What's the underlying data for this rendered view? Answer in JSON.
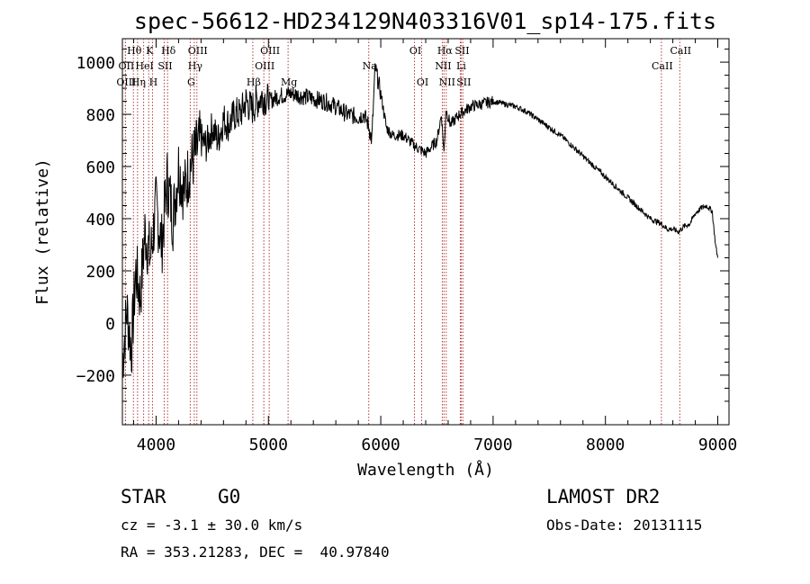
{
  "chart_data": {
    "type": "line",
    "title": "spec-56612-HD234129N403316V01_sp14-175.fits",
    "xlabel": "Wavelength (Å)",
    "ylabel": "Flux (relative)",
    "xlim": [
      3700,
      9100
    ],
    "ylim": [
      -390,
      1090
    ],
    "xticks": [
      4000,
      5000,
      6000,
      7000,
      8000,
      9000
    ],
    "yticks": [
      -200,
      0,
      200,
      400,
      600,
      800,
      1000
    ],
    "series": [
      {
        "name": "flux",
        "x": [
          3700,
          3740,
          3780,
          3820,
          3860,
          3900,
          3950,
          4000,
          4050,
          4100,
          4150,
          4200,
          4250,
          4300,
          4350,
          4400,
          4450,
          4500,
          4550,
          4600,
          4650,
          4700,
          4750,
          4800,
          4850,
          4900,
          4950,
          5000,
          5100,
          5200,
          5300,
          5400,
          5500,
          5600,
          5700,
          5800,
          5850,
          5890,
          5920,
          5950,
          6000,
          6050,
          6100,
          6200,
          6300,
          6400,
          6500,
          6540,
          6563,
          6580,
          6620,
          6700,
          6800,
          6900,
          7000,
          7100,
          7200,
          7300,
          7400,
          7500,
          7600,
          7700,
          7800,
          7900,
          8000,
          8100,
          8200,
          8300,
          8400,
          8500,
          8550,
          8600,
          8650,
          8700,
          8750,
          8800,
          8850,
          8900,
          8950,
          8980,
          9000
        ],
        "y": [
          -150,
          50,
          -100,
          200,
          100,
          350,
          250,
          450,
          300,
          550,
          400,
          600,
          500,
          600,
          650,
          700,
          680,
          750,
          700,
          780,
          760,
          800,
          800,
          850,
          820,
          850,
          870,
          850,
          870,
          880,
          870,
          860,
          850,
          830,
          800,
          790,
          800,
          760,
          700,
          980,
          880,
          750,
          720,
          720,
          680,
          650,
          700,
          800,
          650,
          820,
          760,
          800,
          830,
          840,
          850,
          840,
          830,
          810,
          780,
          750,
          720,
          680,
          640,
          600,
          560,
          520,
          480,
          440,
          400,
          380,
          360,
          360,
          350,
          370,
          380,
          420,
          440,
          450,
          430,
          300,
          250
        ]
      }
    ],
    "spectral_lines": [
      {
        "label": "Hθ",
        "x": 3798,
        "row": 1
      },
      {
        "label": "K",
        "x": 3934,
        "row": 1
      },
      {
        "label": "Hδ",
        "x": 4102,
        "row": 1
      },
      {
        "label": "OIII",
        "x": 4363,
        "row": 1
      },
      {
        "label": "OIII",
        "x": 5007,
        "row": 1
      },
      {
        "label": "OI",
        "x": 6300,
        "row": 1
      },
      {
        "label": "Hα",
        "x": 6563,
        "row": 1
      },
      {
        "label": "SII",
        "x": 6716,
        "row": 1
      },
      {
        "label": "CaII",
        "x": 8662,
        "row": 1
      },
      {
        "label": "OII",
        "x": 3727,
        "row": 2
      },
      {
        "label": "HeI",
        "x": 3889,
        "row": 2
      },
      {
        "label": "SII",
        "x": 4072,
        "row": 2
      },
      {
        "label": "Hγ",
        "x": 4340,
        "row": 2
      },
      {
        "label": "OIII",
        "x": 4959,
        "row": 2
      },
      {
        "label": "Na",
        "x": 5893,
        "row": 2
      },
      {
        "label": "NII",
        "x": 6548,
        "row": 2
      },
      {
        "label": "Li",
        "x": 6708,
        "row": 2
      },
      {
        "label": "CaII",
        "x": 8498,
        "row": 2
      },
      {
        "label": "OIII",
        "x": 3727,
        "row": 3
      },
      {
        "label": "Hη",
        "x": 3835,
        "row": 3
      },
      {
        "label": "H",
        "x": 3968,
        "row": 3
      },
      {
        "label": "G",
        "x": 4304,
        "row": 3
      },
      {
        "label": "Hβ",
        "x": 4861,
        "row": 3
      },
      {
        "label": "Mg",
        "x": 5175,
        "row": 3
      },
      {
        "label": "OI",
        "x": 6364,
        "row": 3
      },
      {
        "label": "NII",
        "x": 6583,
        "row": 3
      },
      {
        "label": "SII",
        "x": 6731,
        "row": 3
      }
    ],
    "line_color": "#b33b3b",
    "grid": false,
    "legend": "none"
  },
  "info": {
    "object_class": "STAR",
    "subclass": "G0",
    "survey": "LAMOST DR2",
    "cz": "cz = -3.1 ± 30.0 km/s",
    "obs_date": "Obs-Date: 20131115",
    "coords": "RA = 353.21283, DEC =  40.97840"
  }
}
